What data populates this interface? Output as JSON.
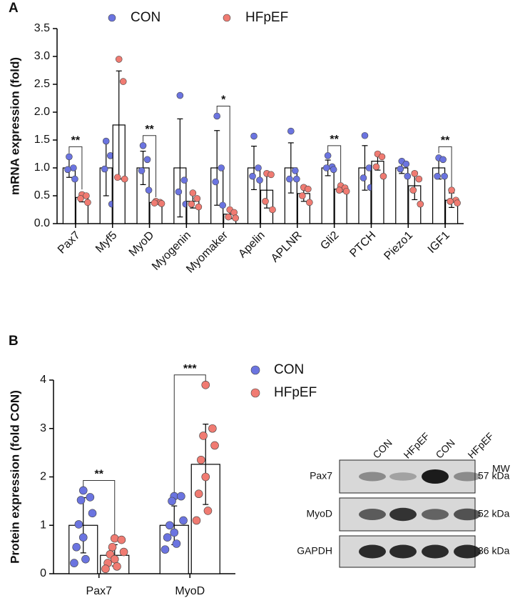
{
  "chart_data": [
    {
      "type": "bar",
      "panel": "A",
      "ylabel": "mRNA expression (fold)",
      "categories": [
        "Pax7",
        "Myf5",
        "MyoD",
        "Myogenin",
        "Myomaker",
        "Apelin",
        "APLNR",
        "Gli2",
        "PTCH",
        "Piezo1",
        "IGF1"
      ],
      "series": [
        {
          "name": "CON",
          "color": "#6b74e0",
          "values": [
            1.0,
            1.0,
            1.0,
            1.0,
            1.0,
            1.0,
            1.0,
            1.0,
            1.0,
            1.0,
            1.0
          ],
          "errors": [
            0.17,
            0.5,
            0.3,
            0.88,
            0.67,
            0.39,
            0.45,
            0.14,
            0.4,
            0.1,
            0.2
          ],
          "points": [
            [
              1.2,
              1.0,
              0.97,
              0.8
            ],
            [
              1.48,
              1.22,
              0.98,
              0.35
            ],
            [
              1.4,
              1.15,
              0.95,
              0.6
            ],
            [
              2.3,
              0.78,
              0.57,
              0.35
            ],
            [
              1.93,
              1.0,
              0.75,
              0.33
            ],
            [
              1.57,
              1.0,
              0.85,
              0.78
            ],
            [
              1.66,
              0.95,
              0.8,
              0.8
            ],
            [
              1.22,
              1.02,
              1.0,
              0.97
            ],
            [
              1.58,
              1.0,
              0.82,
              0.65
            ],
            [
              1.12,
              1.07,
              0.98,
              0.85
            ],
            [
              1.18,
              1.15,
              0.85,
              0.85
            ]
          ]
        },
        {
          "name": "HFpEF",
          "color": "#f07b72",
          "values": [
            0.47,
            1.77,
            0.38,
            0.4,
            0.17,
            0.6,
            0.54,
            0.62,
            1.12,
            0.68,
            0.42
          ],
          "errors": [
            0.08,
            0.97,
            0.03,
            0.12,
            0.08,
            0.32,
            0.14,
            0.05,
            0.16,
            0.25,
            0.13
          ],
          "points": [
            [
              0.52,
              0.5,
              0.45,
              0.38
            ],
            [
              2.95,
              2.55,
              0.83,
              0.8
            ],
            [
              0.4,
              0.38,
              0.37,
              0.36
            ],
            [
              0.55,
              0.45,
              0.35,
              0.3
            ],
            [
              0.25,
              0.2,
              0.12,
              0.1
            ],
            [
              0.9,
              0.88,
              0.4,
              0.25
            ],
            [
              0.65,
              0.62,
              0.5,
              0.38
            ],
            [
              0.68,
              0.64,
              0.6,
              0.58
            ],
            [
              1.25,
              1.2,
              1.02,
              0.85
            ],
            [
              0.9,
              0.8,
              0.6,
              0.35
            ],
            [
              0.6,
              0.42,
              0.4,
              0.37
            ]
          ]
        }
      ],
      "ylim": [
        0,
        3.5
      ],
      "yticks": [
        {
          "value": 0,
          "label": "0.0"
        },
        0.5,
        {
          "value": 1,
          "label": "1.0"
        },
        1.5,
        {
          "value": 2,
          "label": "2.0"
        },
        2.5,
        {
          "value": 3,
          "label": "3.0"
        },
        3.5
      ],
      "annotations": [
        {
          "text": "**",
          "category": "Pax7"
        },
        {
          "text": "**",
          "category": "MyoD"
        },
        {
          "text": "*",
          "category": "Myomaker"
        },
        {
          "text": "**",
          "category": "Gli2"
        },
        {
          "text": "**",
          "category": "IGF1"
        }
      ],
      "legend": "top"
    },
    {
      "type": "bar",
      "panel": "B",
      "ylabel": "Protein expression (fold CON)",
      "categories": [
        "Pax7",
        "MyoD"
      ],
      "series": [
        {
          "name": "CON",
          "color": "#6b74e0",
          "values": [
            1.0,
            1.0
          ],
          "errors": [
            0.57,
            0.4
          ],
          "points": [
            [
              1.72,
              1.58,
              1.52,
              1.25,
              1.02,
              0.75,
              0.55,
              0.3,
              0.22
            ],
            [
              1.6,
              1.6,
              1.5,
              1.1,
              1.0,
              0.85,
              0.75,
              0.62,
              0.5
            ]
          ]
        },
        {
          "name": "HFpEF",
          "color": "#f07b72",
          "values": [
            0.38,
            2.26
          ],
          "errors": [
            0.22,
            0.83
          ],
          "points": [
            [
              0.73,
              0.7,
              0.55,
              0.45,
              0.4,
              0.3,
              0.22,
              0.15,
              0.1
            ],
            [
              3.9,
              3.0,
              2.85,
              2.65,
              2.35,
              2.0,
              1.65,
              1.3,
              1.1
            ]
          ]
        }
      ],
      "ylim": [
        0,
        4
      ],
      "yticks": [
        0,
        1,
        2,
        3,
        4
      ],
      "annotations": [
        {
          "text": "**",
          "category": "Pax7"
        },
        {
          "text": "***",
          "category": "MyoD"
        }
      ],
      "legend": "right"
    }
  ],
  "blot": {
    "lanes": [
      "CON",
      "HFpEF",
      "CON",
      "HFpEF"
    ],
    "mw_header": "MW",
    "rows": [
      {
        "name": "Pax7",
        "mw": "57 kDa"
      },
      {
        "name": "MyoD",
        "mw": "52 kDa"
      },
      {
        "name": "GAPDH",
        "mw": "36 kDa"
      }
    ]
  }
}
